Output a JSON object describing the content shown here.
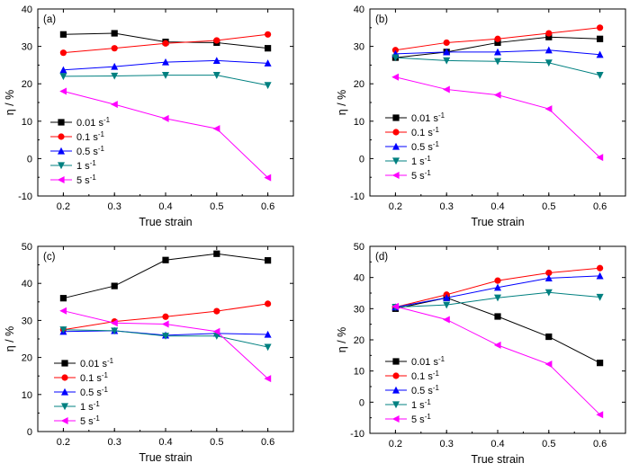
{
  "legend_entries": [
    {
      "base": "0.01 s",
      "sup": "-1"
    },
    {
      "base": "0.1 s",
      "sup": "-1"
    },
    {
      "base": "0.5 s",
      "sup": "-1"
    },
    {
      "base": "1 s",
      "sup": "-1"
    },
    {
      "base": "5 s",
      "sup": "-1"
    }
  ],
  "colors": [
    "#000000",
    "#ff0000",
    "#0000ff",
    "#008080",
    "#ff00ff"
  ],
  "markers": [
    "square",
    "circle",
    "triangle-up",
    "triangle-down",
    "triangle-left"
  ],
  "chart_data": [
    {
      "type": "line",
      "panel_label": "(a)",
      "xlabel": "True strain",
      "ylabel": "η / %",
      "x": [
        0.2,
        0.3,
        0.4,
        0.5,
        0.6
      ],
      "xlim": [
        0.15,
        0.65
      ],
      "ylim": [
        -10,
        40
      ],
      "xticks": [
        "0.2",
        "0.3",
        "0.4",
        "0.5",
        "0.6"
      ],
      "yticks": [
        "-10",
        "0",
        "10",
        "20",
        "30",
        "40"
      ],
      "legend_position": "left",
      "series": [
        {
          "name": "0.01 s-1",
          "values": [
            33.2,
            33.5,
            31.2,
            31.0,
            29.5
          ]
        },
        {
          "name": "0.1 s-1",
          "values": [
            28.3,
            29.5,
            30.8,
            31.6,
            33.2
          ]
        },
        {
          "name": "0.5 s-1",
          "values": [
            23.7,
            24.6,
            25.8,
            26.2,
            25.5
          ]
        },
        {
          "name": "1 s-1",
          "values": [
            22.0,
            22.1,
            22.3,
            22.3,
            19.6
          ]
        },
        {
          "name": "5 s-1",
          "values": [
            18.0,
            14.5,
            10.7,
            8.0,
            -5.1
          ]
        }
      ]
    },
    {
      "type": "line",
      "panel_label": "(b)",
      "xlabel": "True strain",
      "ylabel": "η / %",
      "x": [
        0.2,
        0.3,
        0.4,
        0.5,
        0.6
      ],
      "xlim": [
        0.15,
        0.65
      ],
      "ylim": [
        -10,
        40
      ],
      "xticks": [
        "0.2",
        "0.3",
        "0.4",
        "0.5",
        "0.6"
      ],
      "yticks": [
        "-10",
        "0",
        "10",
        "20",
        "30",
        "40"
      ],
      "legend_position": "left",
      "series": [
        {
          "name": "0.01 s-1",
          "values": [
            27.0,
            28.5,
            31.0,
            32.5,
            32.0
          ]
        },
        {
          "name": "0.1 s-1",
          "values": [
            29.0,
            31.0,
            32.0,
            33.5,
            35.0
          ]
        },
        {
          "name": "0.5 s-1",
          "values": [
            28.0,
            28.5,
            28.5,
            29.0,
            27.8
          ]
        },
        {
          "name": "1 s-1",
          "values": [
            27.0,
            26.2,
            26.0,
            25.6,
            22.3
          ]
        },
        {
          "name": "5 s-1",
          "values": [
            21.8,
            18.5,
            17.0,
            13.3,
            0.3
          ]
        }
      ]
    },
    {
      "type": "line",
      "panel_label": "(c)",
      "xlabel": "True strain",
      "ylabel": "η / %",
      "x": [
        0.2,
        0.3,
        0.4,
        0.5,
        0.6
      ],
      "xlim": [
        0.15,
        0.65
      ],
      "ylim": [
        0,
        50
      ],
      "xticks": [
        "0.2",
        "0.3",
        "0.4",
        "0.5",
        "0.6"
      ],
      "yticks": [
        "0",
        "10",
        "20",
        "30",
        "40",
        "50"
      ],
      "legend_position": "bottom-left",
      "series": [
        {
          "name": "0.01 s-1",
          "values": [
            36.0,
            39.3,
            46.3,
            48.0,
            46.2
          ]
        },
        {
          "name": "0.1 s-1",
          "values": [
            27.5,
            29.7,
            31.0,
            32.5,
            34.5
          ]
        },
        {
          "name": "0.5 s-1",
          "values": [
            27.0,
            27.2,
            26.0,
            26.5,
            26.2
          ]
        },
        {
          "name": "1 s-1",
          "values": [
            27.5,
            27.2,
            25.8,
            25.8,
            22.8
          ]
        },
        {
          "name": "5 s-1",
          "values": [
            32.6,
            29.3,
            29.0,
            27.0,
            14.3
          ]
        }
      ]
    },
    {
      "type": "line",
      "panel_label": "(d)",
      "xlabel": "True strain",
      "ylabel": "η / %",
      "x": [
        0.2,
        0.3,
        0.4,
        0.5,
        0.6
      ],
      "xlim": [
        0.15,
        0.65
      ],
      "ylim": [
        -10,
        50
      ],
      "xticks": [
        "0.2",
        "0.3",
        "0.4",
        "0.5",
        "0.6"
      ],
      "yticks": [
        "-10",
        "0",
        "10",
        "20",
        "30",
        "40",
        "50"
      ],
      "legend_position": "bottom-left",
      "series": [
        {
          "name": "0.01 s-1",
          "values": [
            30.0,
            33.5,
            27.5,
            21.0,
            12.6
          ]
        },
        {
          "name": "0.1 s-1",
          "values": [
            30.5,
            34.5,
            39.0,
            41.5,
            43.0
          ]
        },
        {
          "name": "0.5 s-1",
          "values": [
            30.5,
            33.5,
            36.8,
            39.8,
            40.5
          ]
        },
        {
          "name": "1 s-1",
          "values": [
            30.5,
            31.2,
            33.5,
            35.2,
            33.7
          ]
        },
        {
          "name": "5 s-1",
          "values": [
            30.7,
            26.5,
            18.3,
            12.2,
            -4.0
          ]
        }
      ]
    }
  ]
}
